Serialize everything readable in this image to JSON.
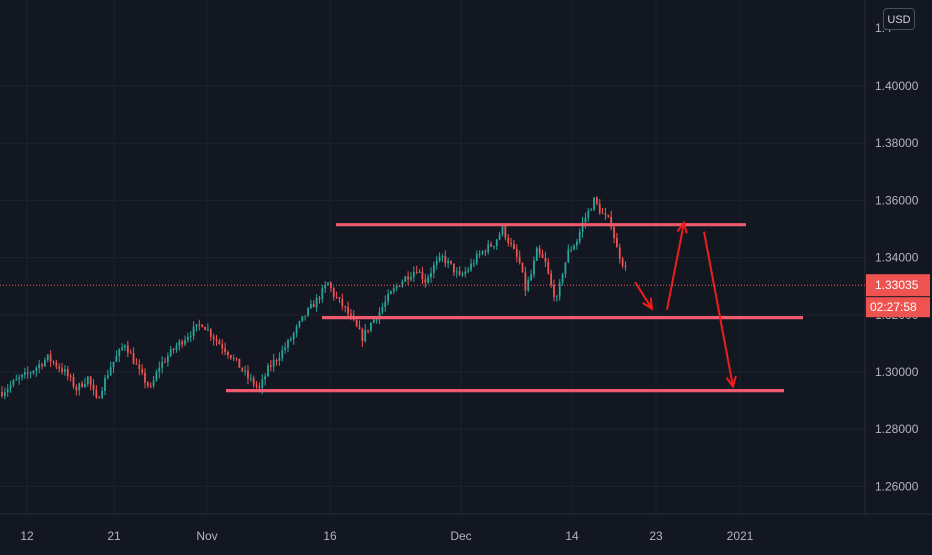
{
  "chart_data": {
    "type": "candlestick",
    "currency": "USD",
    "price_axis": {
      "ticks": [
        "1.40000",
        "1.38000",
        "1.36000",
        "1.34000",
        "1.32000",
        "1.30000",
        "1.28000",
        "1.26000"
      ],
      "tick_values": [
        1.4,
        1.38,
        1.36,
        1.34,
        1.32,
        1.3,
        1.28,
        1.26
      ],
      "top_partial_label": "1.4"
    },
    "time_axis": {
      "ticks": [
        "12",
        "21",
        "Nov",
        "16",
        "Dec",
        "14",
        "23",
        "2021"
      ]
    },
    "current_price": {
      "value": 1.33035,
      "label": "1.33035",
      "countdown": "02:27:58"
    },
    "close_path": [
      [
        0,
        1.293
      ],
      [
        5,
        1.297
      ],
      [
        10,
        1.3
      ],
      [
        16,
        1.305
      ],
      [
        22,
        1.3
      ],
      [
        26,
        1.294
      ],
      [
        30,
        1.298
      ],
      [
        33,
        1.29
      ],
      [
        38,
        1.302
      ],
      [
        43,
        1.31
      ],
      [
        48,
        1.3
      ],
      [
        52,
        1.294
      ],
      [
        55,
        1.302
      ],
      [
        60,
        1.308
      ],
      [
        65,
        1.313
      ],
      [
        70,
        1.317
      ],
      [
        75,
        1.311
      ],
      [
        79,
        1.307
      ],
      [
        83,
        1.302
      ],
      [
        86,
        1.298
      ],
      [
        90,
        1.294
      ],
      [
        93,
        1.301
      ],
      [
        97,
        1.306
      ],
      [
        100,
        1.31
      ],
      [
        103,
        1.315
      ],
      [
        106,
        1.32
      ],
      [
        110,
        1.325
      ],
      [
        114,
        1.331
      ],
      [
        116,
        1.327
      ],
      [
        120,
        1.322
      ],
      [
        123,
        1.317
      ],
      [
        126,
        1.312
      ],
      [
        129,
        1.317
      ],
      [
        132,
        1.321
      ],
      [
        135,
        1.326
      ],
      [
        138,
        1.33
      ],
      [
        141,
        1.333
      ],
      [
        145,
        1.336
      ],
      [
        148,
        1.332
      ],
      [
        151,
        1.337
      ],
      [
        154,
        1.34
      ],
      [
        157,
        1.337
      ],
      [
        160,
        1.333
      ],
      [
        163,
        1.336
      ],
      [
        166,
        1.34
      ],
      [
        169,
        1.343
      ],
      [
        172,
        1.345
      ],
      [
        175,
        1.35
      ],
      [
        178,
        1.344
      ],
      [
        181,
        1.338
      ],
      [
        183,
        1.329
      ],
      [
        185,
        1.334
      ],
      [
        187,
        1.342
      ],
      [
        190,
        1.338
      ],
      [
        192,
        1.33
      ],
      [
        194,
        1.325
      ],
      [
        196,
        1.335
      ],
      [
        198,
        1.342
      ],
      [
        201,
        1.346
      ],
      [
        203,
        1.352
      ],
      [
        205,
        1.356
      ],
      [
        207,
        1.36
      ],
      [
        210,
        1.355
      ],
      [
        213,
        1.352
      ],
      [
        215,
        1.343
      ],
      [
        218,
        1.336
      ]
    ],
    "drawn_levels": [
      1.3515,
      1.319,
      1.2935
    ],
    "scenario_path": [
      1.3515,
      1.319,
      1.2935
    ]
  }
}
